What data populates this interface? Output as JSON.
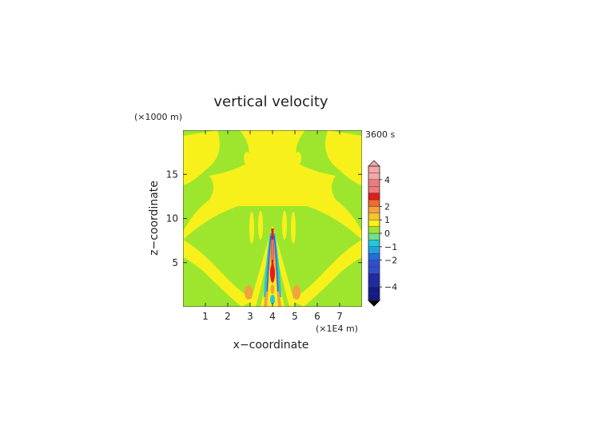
{
  "chart_data": {
    "type": "heatmap",
    "title": "vertical velocity",
    "time_label": "3600 s",
    "xlabel": "x−coordinate",
    "ylabel": "z−coordinate",
    "x_unit": "(×1E4 m)",
    "y_unit": "(×1000 m)",
    "xlim": [
      0,
      8
    ],
    "ylim": [
      0,
      20
    ],
    "xticks": [
      "1",
      "2",
      "3",
      "4",
      "5",
      "6",
      "7"
    ],
    "yticks": [
      "5",
      "10",
      "15"
    ],
    "colorbar": {
      "ticks": [
        "4",
        "2",
        "1",
        "0",
        "−1",
        "−2",
        "−4"
      ],
      "levels": [
        -5.0,
        -4.5,
        -4.0,
        -3.5,
        -3.0,
        -2.5,
        -2.0,
        -1.5,
        -1.0,
        -0.5,
        0.0,
        0.5,
        1.0,
        1.5,
        2.0,
        2.5,
        3.0,
        3.5,
        4.0,
        4.5,
        5.0
      ]
    },
    "colors": {
      "background_field": "#9ee62e",
      "updraft_weak": "#f8f01a",
      "updraft_moderate": "#f4a23c",
      "updraft_strong": "#e21b1b",
      "updraft_max": "#f6a6a6",
      "downdraft_weak": "#22c7d9",
      "downdraft_moderate": "#1e6fe0",
      "downdraft_strong": "#141a86"
    }
  }
}
